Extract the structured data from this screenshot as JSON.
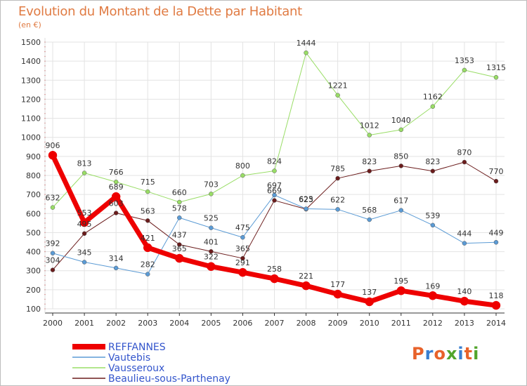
{
  "header": {
    "title": "Evolution du Montant de la Dette par Habitant",
    "subtitle": "(en €)"
  },
  "logo": {
    "text": "Proxiti",
    "letter_colors": [
      "#e8622a",
      "#3a7fd0",
      "#e8622a",
      "#52a52c",
      "#3a7fd0",
      "#e8622a",
      "#52a52c"
    ]
  },
  "chart_data": {
    "type": "line",
    "title": "Evolution du Montant de la Dette par Habitant",
    "subtitle": "(en €)",
    "xlabel": "",
    "ylabel": "",
    "x": [
      "2000",
      "2001",
      "2002",
      "2003",
      "2004",
      "2005",
      "2006",
      "2007",
      "2008",
      "2009",
      "2010",
      "2011",
      "2012",
      "2013",
      "2014"
    ],
    "ylim": [
      100,
      1500
    ],
    "yticks": [
      100,
      200,
      300,
      400,
      500,
      600,
      700,
      800,
      900,
      1000,
      1100,
      1200,
      1300,
      1400,
      1500
    ],
    "grid": true,
    "legend_position": "bottom-left",
    "series": [
      {
        "name": "Beaulieu-sous-Parthenay",
        "color": "#6b1c1c",
        "width": 1,
        "values": [
          304,
          495,
          603,
          563,
          437,
          401,
          365,
          669,
          623,
          785,
          823,
          850,
          823,
          870,
          770
        ]
      },
      {
        "name": "Vausseroux",
        "color": "#99dd66",
        "width": 1,
        "values": [
          632,
          813,
          766,
          715,
          660,
          703,
          800,
          824,
          1444,
          1221,
          1012,
          1040,
          1162,
          1353,
          1315
        ]
      },
      {
        "name": "Vautebis",
        "color": "#5b9bd5",
        "width": 1,
        "values": [
          392,
          345,
          314,
          282,
          578,
          525,
          475,
          697,
          625,
          622,
          568,
          617,
          539,
          444,
          449
        ]
      },
      {
        "name": "REFFANNES",
        "color": "#ee0000",
        "width": 7,
        "values": [
          906,
          553,
          689,
          421,
          365,
          322,
          291,
          258,
          221,
          177,
          137,
          195,
          169,
          140,
          118
        ]
      }
    ],
    "legend_order": [
      "REFFANNES",
      "Vautebis",
      "Vausseroux",
      "Beaulieu-sous-Parthenay"
    ]
  }
}
